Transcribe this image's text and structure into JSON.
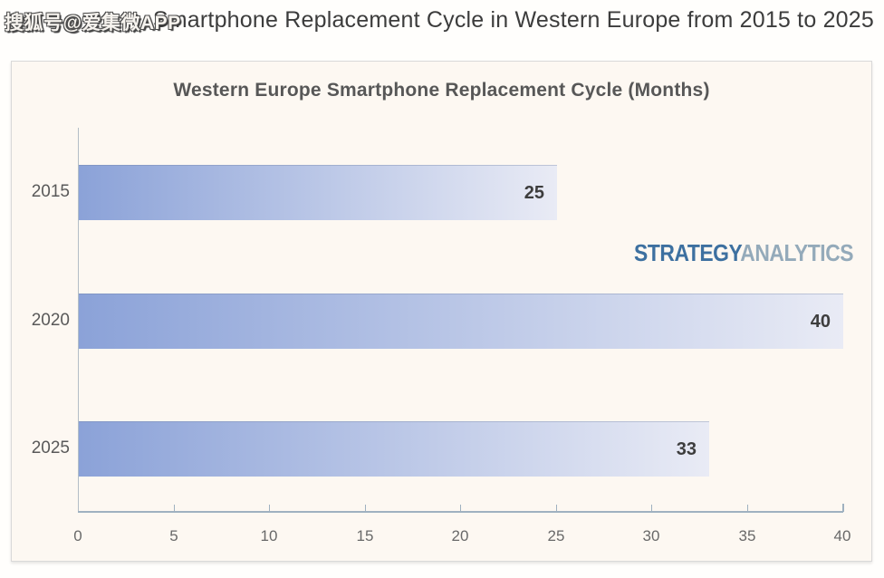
{
  "header": {
    "title": "Smartphone Replacement Cycle in Western Europe from 2015 to 2025",
    "watermark": "搜狐号@爱集微APP"
  },
  "logo": {
    "part1": "STRATEGY",
    "part2": "ANALYTICS"
  },
  "colors": {
    "bar_gradient_start": "#8ba2d8",
    "bar_gradient_mid": "#c3cde9",
    "bar_gradient_end": "#e9ebf5",
    "axis_line": "#9fb1c0",
    "logo_primary": "#3d70a0",
    "logo_secondary": "#94aaba",
    "panel_background": "#fdf8f2",
    "value_label_text": "#3d3d3d",
    "axis_label_text": "#696969"
  },
  "chart_data": {
    "type": "bar",
    "orientation": "horizontal",
    "title": "Western Europe Smartphone Replacement Cycle (Months)",
    "categories": [
      "2015",
      "2020",
      "2025"
    ],
    "values": [
      25,
      40,
      33
    ],
    "value_labels": [
      "25",
      "40",
      "33"
    ],
    "xlim": [
      0,
      40
    ],
    "xticks": [
      0,
      5,
      10,
      15,
      20,
      25,
      30,
      35,
      40
    ],
    "xlabel": "",
    "ylabel": "",
    "grid": false,
    "legend": "none"
  }
}
